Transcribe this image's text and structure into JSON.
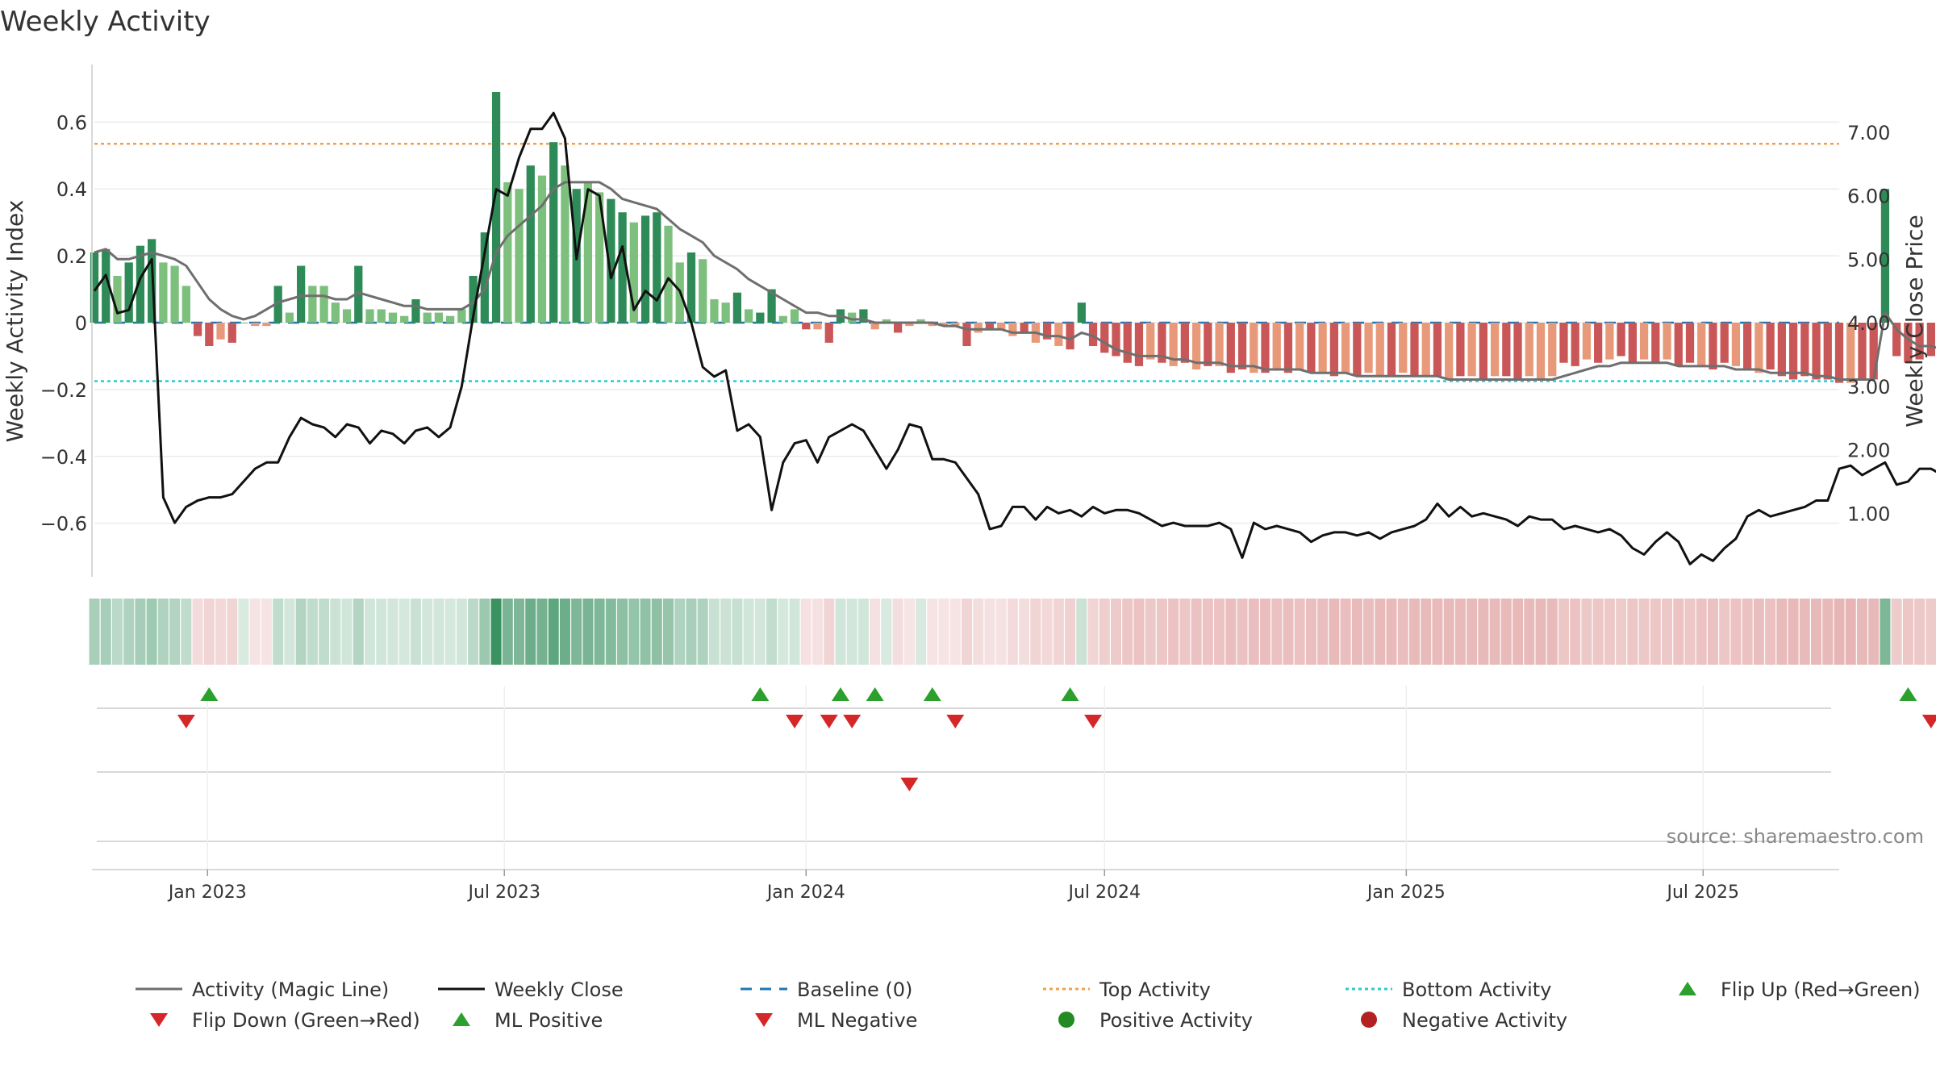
{
  "chart_data": {
    "type": "bar",
    "title": "Weekly Activity",
    "ylabel_left": "Weekly Activity Index",
    "ylabel_right": "Weekly Close Price",
    "ylim_left": [
      -0.76,
      0.76
    ],
    "ylim_right": [
      0.0,
      8.0
    ],
    "yticks_left": [
      {
        "v": 0.6,
        "label": "0.6"
      },
      {
        "v": 0.4,
        "label": "0.4"
      },
      {
        "v": 0.2,
        "label": "0.2"
      },
      {
        "v": 0,
        "label": "0"
      },
      {
        "v": -0.2,
        "label": "−0.2"
      },
      {
        "v": -0.4,
        "label": "−0.4"
      },
      {
        "v": -0.6,
        "label": "−0.6"
      }
    ],
    "yticks_right": [
      {
        "v": 7,
        "label": "7.00"
      },
      {
        "v": 6,
        "label": "6.00"
      },
      {
        "v": 5,
        "label": "5.00"
      },
      {
        "v": 4,
        "label": "4.00"
      },
      {
        "v": 3,
        "label": "3.00"
      },
      {
        "v": 2,
        "label": "2.00"
      },
      {
        "v": 1,
        "label": "1.00"
      }
    ],
    "x_range": [
      "2022-10-24",
      "2025-09-22"
    ],
    "xticks": [
      {
        "date": "2023-01-01",
        "label": "Jan 2023"
      },
      {
        "date": "2023-07-01",
        "label": "Jul 2023"
      },
      {
        "date": "2024-01-01",
        "label": "Jan 2024"
      },
      {
        "date": "2024-07-01",
        "label": "Jul 2024"
      },
      {
        "date": "2025-01-01",
        "label": "Jan 2025"
      },
      {
        "date": "2025-07-01",
        "label": "Jul 2025"
      }
    ],
    "top_activity": 0.535,
    "bottom_activity": -0.175,
    "baseline": 0,
    "grid": true,
    "legend_position": "bottom",
    "start_week": "2022-10-24",
    "activity": [
      0.21,
      0.22,
      0.14,
      0.18,
      0.23,
      0.25,
      0.18,
      0.17,
      0.11,
      -0.04,
      -0.07,
      -0.05,
      -0.06,
      0,
      -0.01,
      -0.01,
      0.11,
      0.03,
      0.17,
      0.11,
      0.11,
      0.06,
      0.04,
      0.17,
      0.04,
      0.04,
      0.03,
      0.02,
      0.07,
      0.03,
      0.03,
      0.02,
      0.04,
      0.14,
      0.27,
      0.69,
      0.42,
      0.4,
      0.47,
      0.44,
      0.54,
      0.47,
      0.4,
      0.42,
      0.39,
      0.37,
      0.33,
      0.3,
      0.32,
      0.33,
      0.29,
      0.18,
      0.21,
      0.19,
      0.07,
      0.06,
      0.09,
      0.04,
      0.03,
      0.1,
      0.02,
      0.04,
      -0.02,
      -0.02,
      -0.06,
      0.04,
      0.03,
      0.04,
      -0.02,
      0.01,
      -0.03,
      -0.01,
      0.01,
      -0.01,
      -0.01,
      -0.01,
      -0.07,
      -0.03,
      -0.02,
      -0.02,
      -0.04,
      -0.03,
      -0.06,
      -0.05,
      -0.07,
      -0.08,
      0.06,
      -0.07,
      -0.09,
      -0.1,
      -0.12,
      -0.13,
      -0.11,
      -0.12,
      -0.13,
      -0.12,
      -0.14,
      -0.13,
      -0.13,
      -0.15,
      -0.14,
      -0.15,
      -0.15,
      -0.14,
      -0.15,
      -0.14,
      -0.15,
      -0.15,
      -0.16,
      -0.15,
      -0.16,
      -0.15,
      -0.16,
      -0.16,
      -0.15,
      -0.16,
      -0.16,
      -0.16,
      -0.17,
      -0.16,
      -0.16,
      -0.17,
      -0.16,
      -0.16,
      -0.17,
      -0.16,
      -0.17,
      -0.16,
      -0.12,
      -0.13,
      -0.11,
      -0.12,
      -0.11,
      -0.1,
      -0.12,
      -0.11,
      -0.12,
      -0.11,
      -0.13,
      -0.12,
      -0.13,
      -0.14,
      -0.12,
      -0.13,
      -0.14,
      -0.15,
      -0.14,
      -0.16,
      -0.17,
      -0.16,
      -0.17,
      -0.17,
      -0.18,
      -0.18,
      -0.17,
      -0.17,
      0.4,
      -0.1,
      -0.12,
      -0.11,
      -0.1,
      -0.09,
      -0.1,
      -0.07,
      -0.04,
      -0.05,
      -0.06,
      -0.05,
      -0.04,
      -0.06,
      -0.05,
      -0.04,
      -0.06,
      -0.07,
      -0.06,
      -0.05,
      -0.07,
      -0.09,
      -0.06
    ],
    "activity_strong": [
      1,
      1,
      0,
      1,
      1,
      1,
      0,
      0,
      0,
      1,
      1,
      0,
      1,
      0,
      0,
      0,
      1,
      0,
      1,
      0,
      0,
      0,
      0,
      1,
      0,
      0,
      0,
      0,
      1,
      0,
      0,
      0,
      0,
      1,
      1,
      1,
      0,
      0,
      1,
      0,
      1,
      0,
      1,
      0,
      0,
      1,
      1,
      0,
      1,
      1,
      0,
      0,
      1,
      0,
      0,
      0,
      1,
      0,
      1,
      1,
      0,
      0,
      1,
      0,
      1,
      1,
      0,
      1,
      0,
      0,
      1,
      0,
      0,
      0,
      0,
      0,
      1,
      0,
      1,
      0,
      0,
      1,
      0,
      1,
      0,
      1,
      1,
      1,
      1,
      1,
      1,
      1,
      0,
      1,
      0,
      1,
      0,
      1,
      0,
      1,
      1,
      0,
      1,
      0,
      1,
      0,
      1,
      0,
      1,
      0,
      1,
      0,
      0,
      1,
      0,
      1,
      0,
      1,
      0,
      1,
      0,
      1,
      0,
      1,
      1,
      0,
      0,
      0,
      1,
      1,
      0,
      1,
      0,
      1,
      1,
      0,
      1,
      0,
      1,
      1,
      0,
      1,
      1,
      0,
      1,
      0,
      1,
      1,
      1,
      1,
      1,
      1,
      1,
      0,
      1,
      1,
      1,
      1,
      1,
      1,
      1,
      1,
      0,
      0,
      1,
      0,
      1,
      1,
      1,
      0,
      1,
      0,
      1,
      0,
      1,
      0
    ],
    "magic_line": [
      0.21,
      0.22,
      0.19,
      0.19,
      0.2,
      0.21,
      0.2,
      0.19,
      0.17,
      0.12,
      0.07,
      0.04,
      0.02,
      0.01,
      0.02,
      0.04,
      0.06,
      0.07,
      0.08,
      0.08,
      0.08,
      0.07,
      0.07,
      0.09,
      0.08,
      0.07,
      0.06,
      0.05,
      0.05,
      0.04,
      0.04,
      0.04,
      0.04,
      0.06,
      0.1,
      0.21,
      0.26,
      0.29,
      0.32,
      0.35,
      0.4,
      0.42,
      0.42,
      0.42,
      0.42,
      0.4,
      0.37,
      0.36,
      0.35,
      0.34,
      0.31,
      0.28,
      0.26,
      0.24,
      0.2,
      0.18,
      0.16,
      0.13,
      0.11,
      0.09,
      0.07,
      0.05,
      0.03,
      0.03,
      0.02,
      0.02,
      0.01,
      0.01,
      0.0,
      0.0,
      0.0,
      0.0,
      0.0,
      0.0,
      -0.01,
      -0.01,
      -0.02,
      -0.02,
      -0.02,
      -0.02,
      -0.03,
      -0.03,
      -0.03,
      -0.04,
      -0.04,
      -0.05,
      -0.03,
      -0.04,
      -0.06,
      -0.08,
      -0.09,
      -0.1,
      -0.1,
      -0.1,
      -0.11,
      -0.11,
      -0.12,
      -0.12,
      -0.12,
      -0.13,
      -0.13,
      -0.13,
      -0.14,
      -0.14,
      -0.14,
      -0.14,
      -0.15,
      -0.15,
      -0.15,
      -0.15,
      -0.16,
      -0.16,
      -0.16,
      -0.16,
      -0.16,
      -0.16,
      -0.16,
      -0.16,
      -0.17,
      -0.17,
      -0.17,
      -0.17,
      -0.17,
      -0.17,
      -0.17,
      -0.17,
      -0.17,
      -0.17,
      -0.16,
      -0.15,
      -0.14,
      -0.13,
      -0.13,
      -0.12,
      -0.12,
      -0.12,
      -0.12,
      -0.12,
      -0.13,
      -0.13,
      -0.13,
      -0.13,
      -0.13,
      -0.14,
      -0.14,
      -0.14,
      -0.15,
      -0.15,
      -0.15,
      -0.15,
      -0.16,
      -0.16,
      -0.17,
      -0.17,
      -0.17,
      -0.17,
      0.03,
      -0.02,
      -0.05,
      -0.07,
      -0.07,
      -0.08,
      -0.08,
      -0.07,
      -0.06,
      -0.05,
      -0.05,
      -0.04,
      -0.04,
      -0.05,
      -0.05,
      -0.05,
      -0.05,
      -0.06,
      -0.06,
      -0.06,
      -0.06,
      -0.07,
      -0.07
    ],
    "weekly_close": [
      4.5,
      4.75,
      4.15,
      4.2,
      4.7,
      5.0,
      1.25,
      0.85,
      1.1,
      1.2,
      1.25,
      1.25,
      1.3,
      1.5,
      1.7,
      1.8,
      1.8,
      2.2,
      2.5,
      2.4,
      2.35,
      2.2,
      2.4,
      2.35,
      2.1,
      2.3,
      2.25,
      2.1,
      2.3,
      2.35,
      2.2,
      2.35,
      3.0,
      4.1,
      5.1,
      6.1,
      6.0,
      6.6,
      7.05,
      7.05,
      7.3,
      6.9,
      5.0,
      6.1,
      6.0,
      4.7,
      5.2,
      4.2,
      4.5,
      4.35,
      4.7,
      4.5,
      4.0,
      3.3,
      3.15,
      3.25,
      2.3,
      2.4,
      2.2,
      1.05,
      1.8,
      2.1,
      2.15,
      1.8,
      2.2,
      2.3,
      2.4,
      2.3,
      2.0,
      1.7,
      2.0,
      2.4,
      2.35,
      1.85,
      1.85,
      1.8,
      1.55,
      1.3,
      0.75,
      0.8,
      1.1,
      1.1,
      0.9,
      1.1,
      1.0,
      1.05,
      0.95,
      1.1,
      1.0,
      1.05,
      1.05,
      1.0,
      0.9,
      0.8,
      0.85,
      0.8,
      0.8,
      0.8,
      0.85,
      0.75,
      0.3,
      0.85,
      0.75,
      0.8,
      0.75,
      0.7,
      0.55,
      0.65,
      0.7,
      0.7,
      0.65,
      0.7,
      0.6,
      0.7,
      0.75,
      0.8,
      0.9,
      1.15,
      0.95,
      1.1,
      0.95,
      1.0,
      0.95,
      0.9,
      0.8,
      0.95,
      0.9,
      0.9,
      0.75,
      0.8,
      0.75,
      0.7,
      0.75,
      0.65,
      0.45,
      0.35,
      0.55,
      0.7,
      0.55,
      0.2,
      0.35,
      0.25,
      0.45,
      0.6,
      0.95,
      1.05,
      0.95,
      1.0,
      1.05,
      1.1,
      1.2,
      1.2,
      1.7,
      1.75,
      1.6,
      1.7,
      1.8,
      1.45,
      1.5,
      1.7,
      1.7,
      1.6,
      1.55,
      1.5,
      1.65,
      1.85,
      1.85,
      1.8,
      1.7,
      1.7,
      1.7,
      1.7,
      1.7,
      1.65,
      1.7,
      1.75,
      1.8,
      1.7,
      1.75,
      1.8
    ],
    "flip_up_weeks": [
      10,
      58,
      65,
      68,
      73,
      85,
      158
    ],
    "flip_down_weeks": [
      8,
      61,
      64,
      66,
      75,
      87,
      160
    ],
    "ml_negative_weeks": [
      71
    ],
    "heat_strip": "weekly activity color band"
  },
  "source": "source: sharemaestro.com",
  "colors": {
    "strong_green": "#2e8b57",
    "light_green": "#7dbf7d",
    "strong_red": "#c95757",
    "light_red": "#e8997a",
    "magic_line": "#6f6f6f",
    "close_line": "#111111",
    "baseline": "#1f77b4",
    "top_activity": "#f0a050",
    "bottom_activity": "#30c8d0",
    "flip_up": "#2ca02c",
    "flip_down": "#d62728",
    "positive_activity": "#228b22",
    "negative_activity": "#b22222"
  },
  "legend": [
    {
      "label": "Activity (Magic Line)",
      "kind": "line",
      "color": "#6f6f6f"
    },
    {
      "label": "Weekly Close",
      "kind": "line",
      "color": "#111111"
    },
    {
      "label": "Baseline (0)",
      "kind": "dash",
      "color": "#1f77b4"
    },
    {
      "label": "Top Activity",
      "kind": "dot",
      "color": "#f0a050"
    },
    {
      "label": "Bottom Activity",
      "kind": "dot",
      "color": "#30c8d0"
    },
    {
      "label": "Flip Up (Red→Green)",
      "kind": "tri-up",
      "color": "#2ca02c"
    },
    {
      "label": "Flip Down (Green→Red)",
      "kind": "tri-down",
      "color": "#d62728"
    },
    {
      "label": "ML Positive",
      "kind": "tri-up",
      "color": "#2ca02c"
    },
    {
      "label": "ML Negative",
      "kind": "tri-down",
      "color": "#d62728"
    },
    {
      "label": "Positive Activity",
      "kind": "circle",
      "color": "#228b22"
    },
    {
      "label": "Negative Activity",
      "kind": "circle",
      "color": "#b22222"
    }
  ]
}
